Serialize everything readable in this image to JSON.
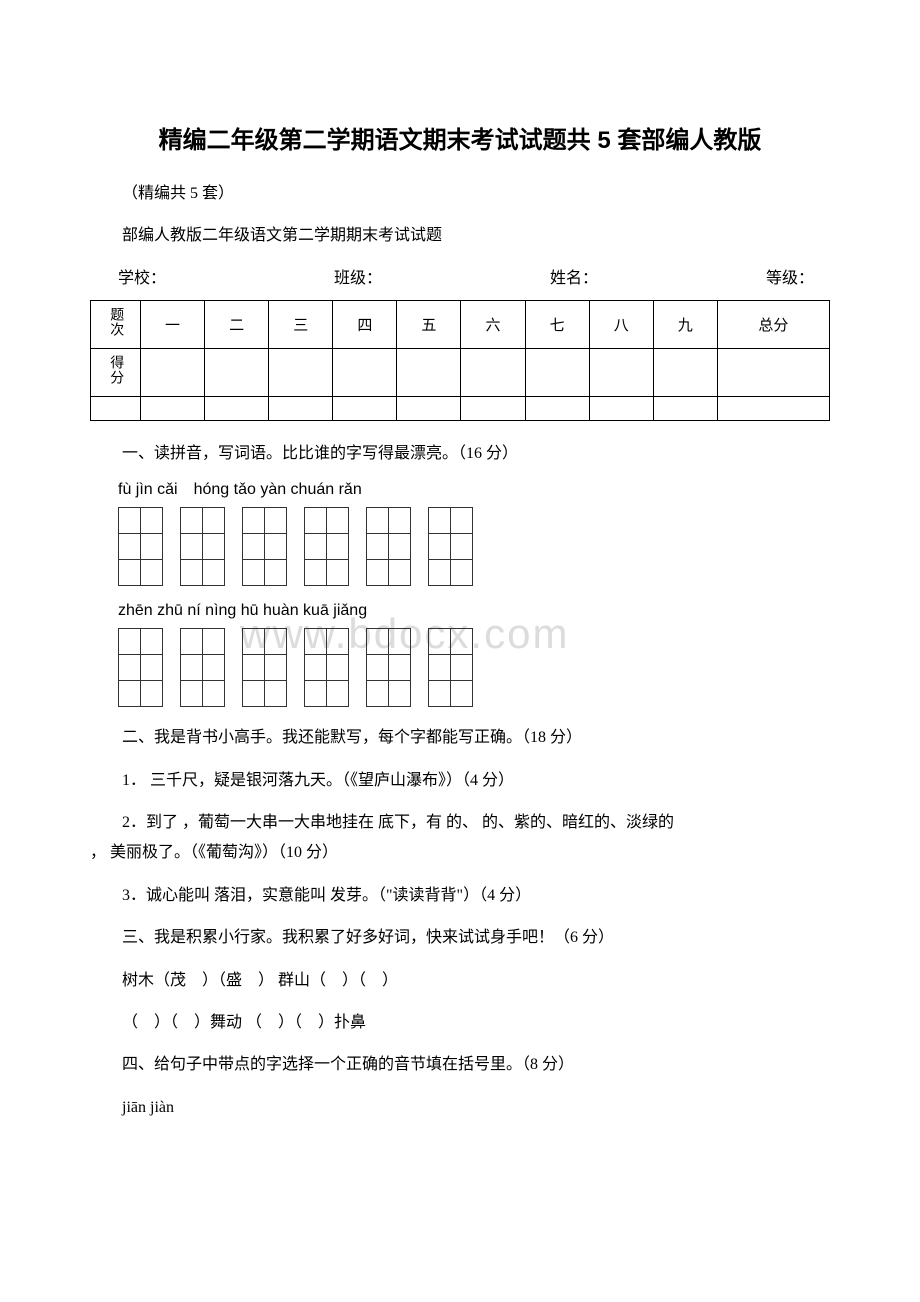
{
  "title": "精编二年级第二学期语文期末考试试题共 5 套部编人教版",
  "sub1": "（精编共 5 套）",
  "sub2": "部编人教版二年级语文第二学期期末考试试题",
  "info": {
    "school": "学校：",
    "class": "班级：",
    "name": "姓名：",
    "grade": "等级："
  },
  "score": {
    "row1": "题次",
    "row2": "得分",
    "cols": [
      "一",
      "二",
      "三",
      "四",
      "五",
      "六",
      "七",
      "八",
      "九",
      "总分"
    ]
  },
  "q1": "一、读拼音，写词语。比比谁的字写得最漂亮。（16 分）",
  "pinyin1": "fù jìn cǎi hóng tǎo yàn chuán rǎn",
  "pinyin2": "zhēn zhū ní nìng hū huàn kuā jiǎng",
  "q2": "二、我是背书小高手。我还能默写，每个字都能写正确。（18 分）",
  "q2_1": "1．  三千尺，疑是银河落九天。（《望庐山瀑布》）（4 分）",
  "q2_2a": "2．到了 ，葡萄一大串一大串地挂在  底下，有 的、 的、紫的、暗红的、淡绿的",
  "q2_2b": "，  美丽极了。（《葡萄沟》）（10 分）",
  "q2_3": "3．诚心能叫 落泪，实意能叫 发芽。（\"读读背背\"）（4 分）",
  "q3": "三、我是积累小行家。我积累了好多好词，快来试试身手吧！（6 分）",
  "q3_1": "树木（茂 ）（盛 ） 群山（ ）（ ）",
  "q3_2": "（ ）（ ）舞动 （ ）（ ）扑鼻",
  "q4": "四、给句子中带点的字选择一个正确的音节填在括号里。（8 分）",
  "q4_1": " jiān jiàn",
  "watermark": "www.bdocx.com"
}
